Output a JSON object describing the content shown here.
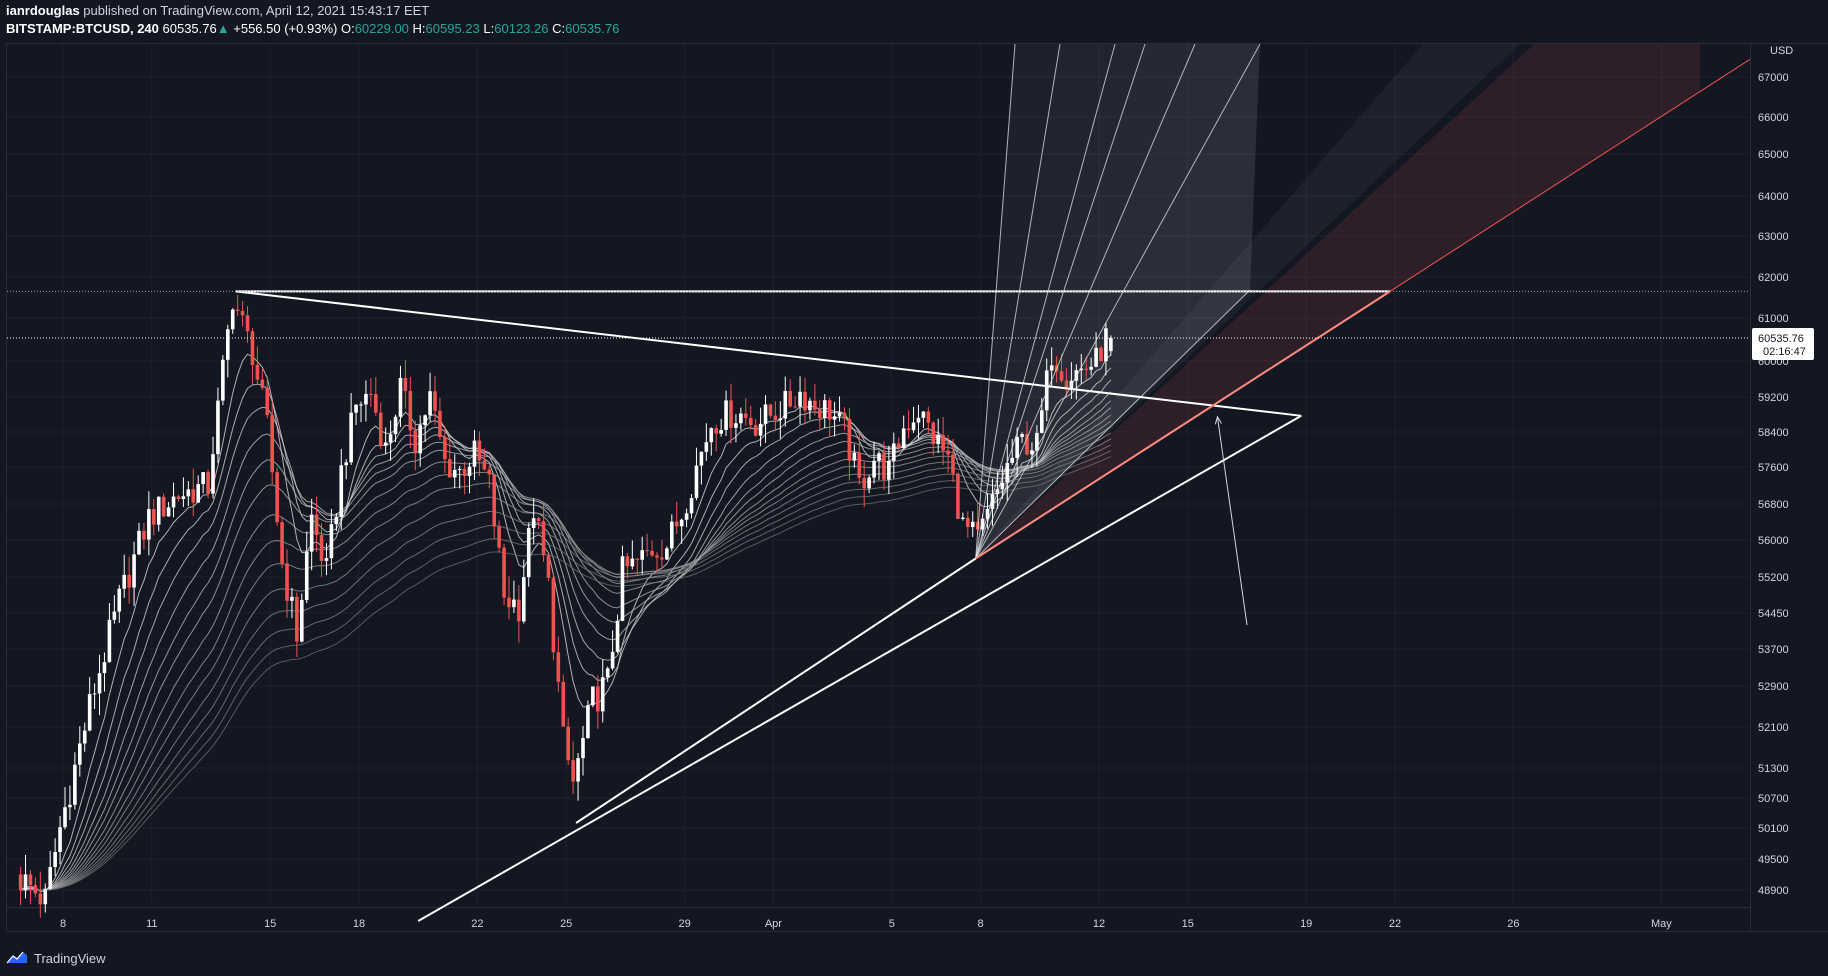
{
  "header": {
    "user": "ianrdouglas",
    "published_text": " published on TradingView.com, April 12, 2021 15:43:17 EET",
    "symbol": "BITSTAMP:BTCUSD, 240",
    "last": "60535.76",
    "change": "+556.50 (+0.93%)",
    "o_label": "O:",
    "o_value": "60229.00",
    "h_label": "H:",
    "h_value": "60595.23",
    "l_label": "L:",
    "l_value": "60123.26",
    "c_label": "C:",
    "c_value": "60535.76"
  },
  "footer": {
    "brand": "TradingView",
    "logo_icon": "tradingview-logo-icon"
  },
  "colors": {
    "background": "#131722",
    "up": "#ffffff",
    "down": "#ef5350",
    "text": "#d1d4dc",
    "accent": "#26a69a",
    "trend_red": "#ef5350"
  },
  "chart_data": {
    "type": "candlestick",
    "symbol": "BITSTAMP:BTCUSD",
    "timeframe": "240",
    "currency": "USD",
    "last_price_label": "60535.76",
    "countdown_label": "02:16:47",
    "y_ticks": [
      "67000",
      "66000",
      "65000",
      "64000",
      "63000",
      "62000",
      "61000",
      "60000",
      "59200",
      "58400",
      "57600",
      "56800",
      "56000",
      "55200",
      "54450",
      "53700",
      "52900",
      "52100",
      "51300",
      "50700",
      "50100",
      "49500",
      "48900"
    ],
    "x_ticks": [
      "8",
      "11",
      "15",
      "18",
      "22",
      "25",
      "29",
      "Apr",
      "5",
      "8",
      "12",
      "15",
      "19",
      "22",
      "26",
      "May"
    ],
    "price_path": [
      [
        "Mar 6 12:00",
        49200
      ],
      [
        "Mar 7 12:00",
        48700
      ],
      [
        "Mar 8 00:00",
        50100
      ],
      [
        "Mar 9 00:00",
        52500
      ],
      [
        "Mar 10 00:00",
        54700
      ],
      [
        "Mar 11 00:00",
        56500
      ],
      [
        "Mar 12 00:00",
        57000
      ],
      [
        "Mar 13 00:00",
        57200
      ],
      [
        "Mar 13 20:00",
        61500
      ],
      [
        "Mar 14 12:00",
        60200
      ],
      [
        "Mar 15 00:00",
        58500
      ],
      [
        "Mar 15 12:00",
        55500
      ],
      [
        "Mar 16 00:00",
        54000
      ],
      [
        "Mar 16 12:00",
        56500
      ],
      [
        "Mar 17 00:00",
        55300
      ],
      [
        "Mar 17 12:00",
        57500
      ],
      [
        "Mar 18 00:00",
        59000
      ],
      [
        "Mar 18 12:00",
        59300
      ],
      [
        "Mar 19 00:00",
        58000
      ],
      [
        "Mar 19 12:00",
        59400
      ],
      [
        "Mar 20 00:00",
        58200
      ],
      [
        "Mar 20 12:00",
        59200
      ],
      [
        "Mar 21 00:00",
        57700
      ],
      [
        "Mar 21 12:00",
        57500
      ],
      [
        "Mar 22 00:00",
        57900
      ],
      [
        "Mar 22 12:00",
        57200
      ],
      [
        "Mar 23 00:00",
        54800
      ],
      [
        "Mar 23 12:00",
        54600
      ],
      [
        "Mar 24 00:00",
        56700
      ],
      [
        "Mar 24 12:00",
        55000
      ],
      [
        "Mar 25 00:00",
        51800
      ],
      [
        "Mar 25 08:00",
        51000
      ],
      [
        "Mar 26 00:00",
        52600
      ],
      [
        "Mar 26 12:00",
        53000
      ],
      [
        "Mar 27 00:00",
        55300
      ],
      [
        "Mar 27 12:00",
        55500
      ],
      [
        "Mar 28 00:00",
        55800
      ],
      [
        "Mar 28 12:00",
        55900
      ],
      [
        "Mar 29 00:00",
        56600
      ],
      [
        "Mar 29 12:00",
        57600
      ],
      [
        "Mar 30 00:00",
        58600
      ],
      [
        "Mar 30 12:00",
        58800
      ],
      [
        "Mar 31 00:00",
        58800
      ],
      [
        "Mar 31 12:00",
        58600
      ],
      [
        "Apr 1 00:00",
        58800
      ],
      [
        "Apr 1 12:00",
        59000
      ],
      [
        "Apr 2 00:00",
        59300
      ],
      [
        "Apr 2 12:00",
        59000
      ],
      [
        "Apr 3 00:00",
        58900
      ],
      [
        "Apr 3 12:00",
        58400
      ],
      [
        "Apr 4 00:00",
        57200
      ],
      [
        "Apr 4 12:00",
        57800
      ],
      [
        "Apr 5 00:00",
        57500
      ],
      [
        "Apr 5 12:00",
        58500
      ],
      [
        "Apr 6 00:00",
        58900
      ],
      [
        "Apr 6 12:00",
        58300
      ],
      [
        "Apr 7 00:00",
        57800
      ],
      [
        "Apr 7 12:00",
        56300
      ],
      [
        "Apr 8 00:00",
        56000
      ],
      [
        "Apr 8 12:00",
        56800
      ],
      [
        "Apr 9 00:00",
        57600
      ],
      [
        "Apr 9 12:00",
        58200
      ],
      [
        "Apr 10 00:00",
        58100
      ],
      [
        "Apr 10 12:00",
        60200
      ],
      [
        "Apr 11 00:00",
        59700
      ],
      [
        "Apr 11 12:00",
        59800
      ],
      [
        "Apr 12 00:00",
        60000
      ],
      [
        "Apr 12 08:00",
        60535.76
      ]
    ],
    "drawings": [
      {
        "type": "horizontal",
        "name": "resistance",
        "from": "Mar 13 20:00",
        "to": "Apr 21 20:00",
        "y": 61650
      },
      {
        "type": "trendline",
        "name": "descending",
        "from": [
          "Mar 13 20:00",
          61650
        ],
        "to": [
          "Apr 18 20:00",
          58770
        ]
      },
      {
        "type": "trendline",
        "name": "rising-support",
        "from": [
          "Mar 20 00:00",
          48300
        ],
        "to": [
          "Apr 18 20:00",
          58770
        ]
      },
      {
        "type": "trendline",
        "name": "rising-support-2",
        "from": [
          "Mar 25 08:00",
          50200
        ],
        "to": [
          "Apr 7 20:00",
          55600
        ]
      },
      {
        "type": "trendline",
        "name": "red-trend",
        "from": [
          "Apr 7 20:00",
          55600
        ],
        "to": [
          "Apr 21 20:00",
          61650
        ]
      },
      {
        "type": "arrow",
        "name": "pointer-arrow",
        "from": [
          "Apr 17 00:00",
          54200
        ],
        "to": [
          "Apr 16 00:00",
          58750
        ]
      },
      {
        "type": "fan",
        "name": "gann-fan",
        "origin": [
          "Apr 7 20:00",
          55600
        ]
      }
    ]
  }
}
